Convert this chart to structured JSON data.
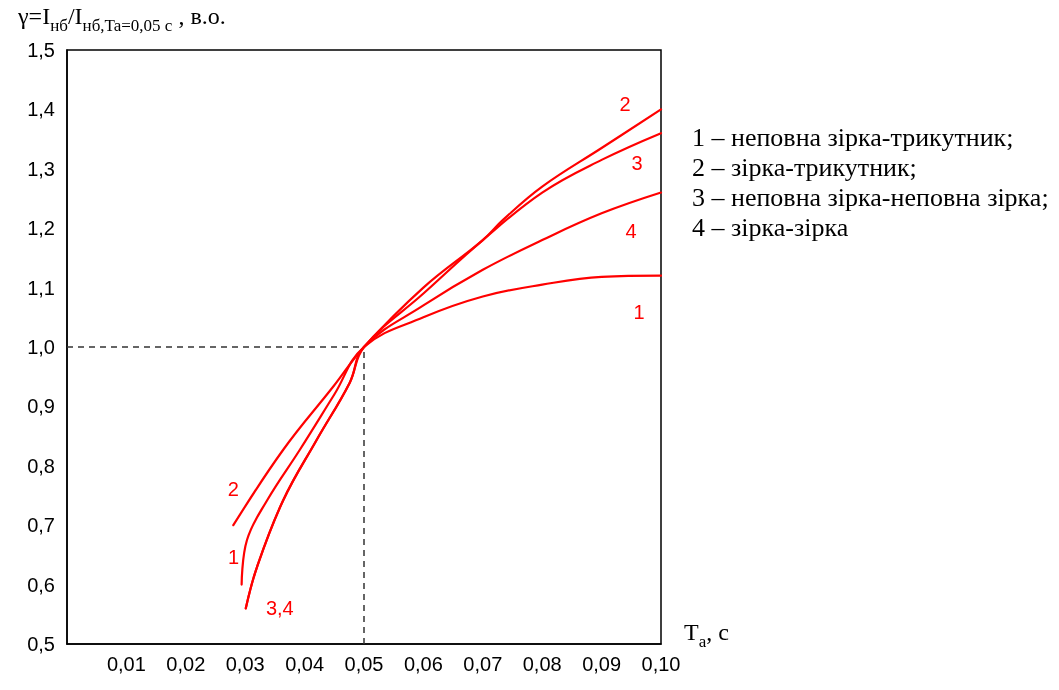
{
  "chart_data": {
    "type": "line",
    "ylabel": "γ=I$_{нб}$/I$_{нб,Ta=0,05 с}$ , в.о.",
    "xlabel": "T$_{a}$, с",
    "xlim": [
      0,
      0.1
    ],
    "ylim": [
      0.5,
      1.5
    ],
    "xticks": [
      {
        "value": 0.01,
        "label": "0,01"
      },
      {
        "value": 0.02,
        "label": "0,02"
      },
      {
        "value": 0.03,
        "label": "0,03"
      },
      {
        "value": 0.04,
        "label": "0,04"
      },
      {
        "value": 0.05,
        "label": "0,05"
      },
      {
        "value": 0.06,
        "label": "0,06"
      },
      {
        "value": 0.07,
        "label": "0,07"
      },
      {
        "value": 0.08,
        "label": "0,08"
      },
      {
        "value": 0.09,
        "label": "0,09"
      },
      {
        "value": 0.1,
        "label": "0,10"
      }
    ],
    "yticks": [
      {
        "value": 0.5,
        "label": "0,5"
      },
      {
        "value": 0.6,
        "label": "0,6"
      },
      {
        "value": 0.7,
        "label": "0,7"
      },
      {
        "value": 0.8,
        "label": "0,8"
      },
      {
        "value": 0.9,
        "label": "0,9"
      },
      {
        "value": 1.0,
        "label": "1,0"
      },
      {
        "value": 1.1,
        "label": "1,1"
      },
      {
        "value": 1.2,
        "label": "1,2"
      },
      {
        "value": 1.3,
        "label": "1,3"
      },
      {
        "value": 1.4,
        "label": "1,4"
      },
      {
        "value": 1.5,
        "label": "1,5"
      }
    ],
    "grid": false,
    "marker": "none",
    "line_style": "solid",
    "series": [
      {
        "color": "#ff0000",
        "x": [
          0.0294,
          0.0303,
          0.0337,
          0.0392,
          0.045,
          0.05,
          0.06,
          0.07,
          0.08,
          0.09,
          0.1
        ],
        "values": [
          0.6,
          0.675,
          0.742,
          0.827,
          0.92,
          1.0,
          1.05,
          1.085,
          1.105,
          1.118,
          1.12
        ]
      },
      {
        "color": "#ff0000",
        "x": [
          0.028,
          0.0364,
          0.0448,
          0.05,
          0.06,
          0.07,
          0.0734,
          0.08,
          0.09,
          0.1
        ],
        "values": [
          0.7,
          0.827,
          0.933,
          1.0,
          1.1,
          1.18,
          1.214,
          1.27,
          1.335,
          1.4
        ]
      },
      {
        "color": "#ff0000",
        "x": [
          0.0301,
          0.032,
          0.0364,
          0.042,
          0.0476,
          0.05,
          0.06,
          0.07,
          0.08,
          0.09,
          0.1
        ],
        "values": [
          0.56,
          0.63,
          0.742,
          0.843,
          0.94,
          1.0,
          1.09,
          1.18,
          1.26,
          1.315,
          1.36
        ]
      },
      {
        "color": "#ff0000",
        "x": [
          0.0301,
          0.032,
          0.0364,
          0.042,
          0.0476,
          0.05,
          0.06,
          0.07,
          0.08,
          0.09,
          0.1
        ],
        "values": [
          0.56,
          0.63,
          0.742,
          0.843,
          0.94,
          1.0,
          1.07,
          1.13,
          1.18,
          1.225,
          1.26
        ]
      }
    ],
    "ref_lines": [
      {
        "axis": "x",
        "value": 0.05,
        "color": "#333333",
        "line_style": "dashed"
      },
      {
        "axis": "y",
        "value": 1.0,
        "color": "#333333",
        "line_style": "dashed"
      }
    ],
    "annotations": [
      {
        "text": "2",
        "x": 0.1,
        "y": 1.4
      },
      {
        "text": "3",
        "x": 0.1,
        "y": 1.36
      },
      {
        "text": "4",
        "x": 0.1,
        "y": 1.26
      },
      {
        "text": "1",
        "x": 0.1,
        "y": 1.12
      },
      {
        "text": "2",
        "x": 0.028,
        "y": 0.7
      },
      {
        "text": "1",
        "x": 0.0294,
        "y": 0.6
      },
      {
        "text": "3,4",
        "x": 0.0301,
        "y": 0.56
      },
      "1 – неповна зірка-трикутник;",
      "2 – зірка-трикутник;",
      "3 – неповна зірка-неповна зірка;",
      "4 – зірка-зірка"
    ]
  }
}
